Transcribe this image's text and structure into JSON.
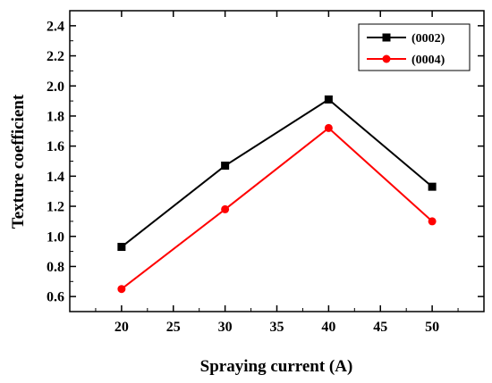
{
  "chart_data": {
    "type": "line",
    "xlabel": "Spraying current (A)",
    "ylabel": "Texture coefficient",
    "xlim": [
      15,
      55
    ],
    "ylim": [
      0.5,
      2.5
    ],
    "x_ticks": [
      20,
      25,
      30,
      35,
      40,
      45,
      50
    ],
    "y_ticks": [
      0.6,
      0.8,
      1.0,
      1.2,
      1.4,
      1.6,
      1.8,
      2.0,
      2.2,
      2.4
    ],
    "x_tick_labels": [
      "20",
      "25",
      "30",
      "35",
      "40",
      "45",
      "50"
    ],
    "y_tick_labels": [
      "0.6",
      "0.8",
      "1.0",
      "1.2",
      "1.4",
      "1.6",
      "1.8",
      "2.0",
      "2.2",
      "2.4"
    ],
    "grid": false,
    "legend_position": "top-right",
    "series": [
      {
        "name": "(0002)",
        "color": "#000000",
        "marker": "square",
        "x": [
          20,
          30,
          40,
          50
        ],
        "values": [
          0.93,
          1.47,
          1.91,
          1.33
        ]
      },
      {
        "name": "(0004)",
        "color": "#ff0000",
        "marker": "circle",
        "x": [
          20,
          30,
          40,
          50
        ],
        "values": [
          0.65,
          1.18,
          1.72,
          1.1
        ]
      }
    ]
  }
}
